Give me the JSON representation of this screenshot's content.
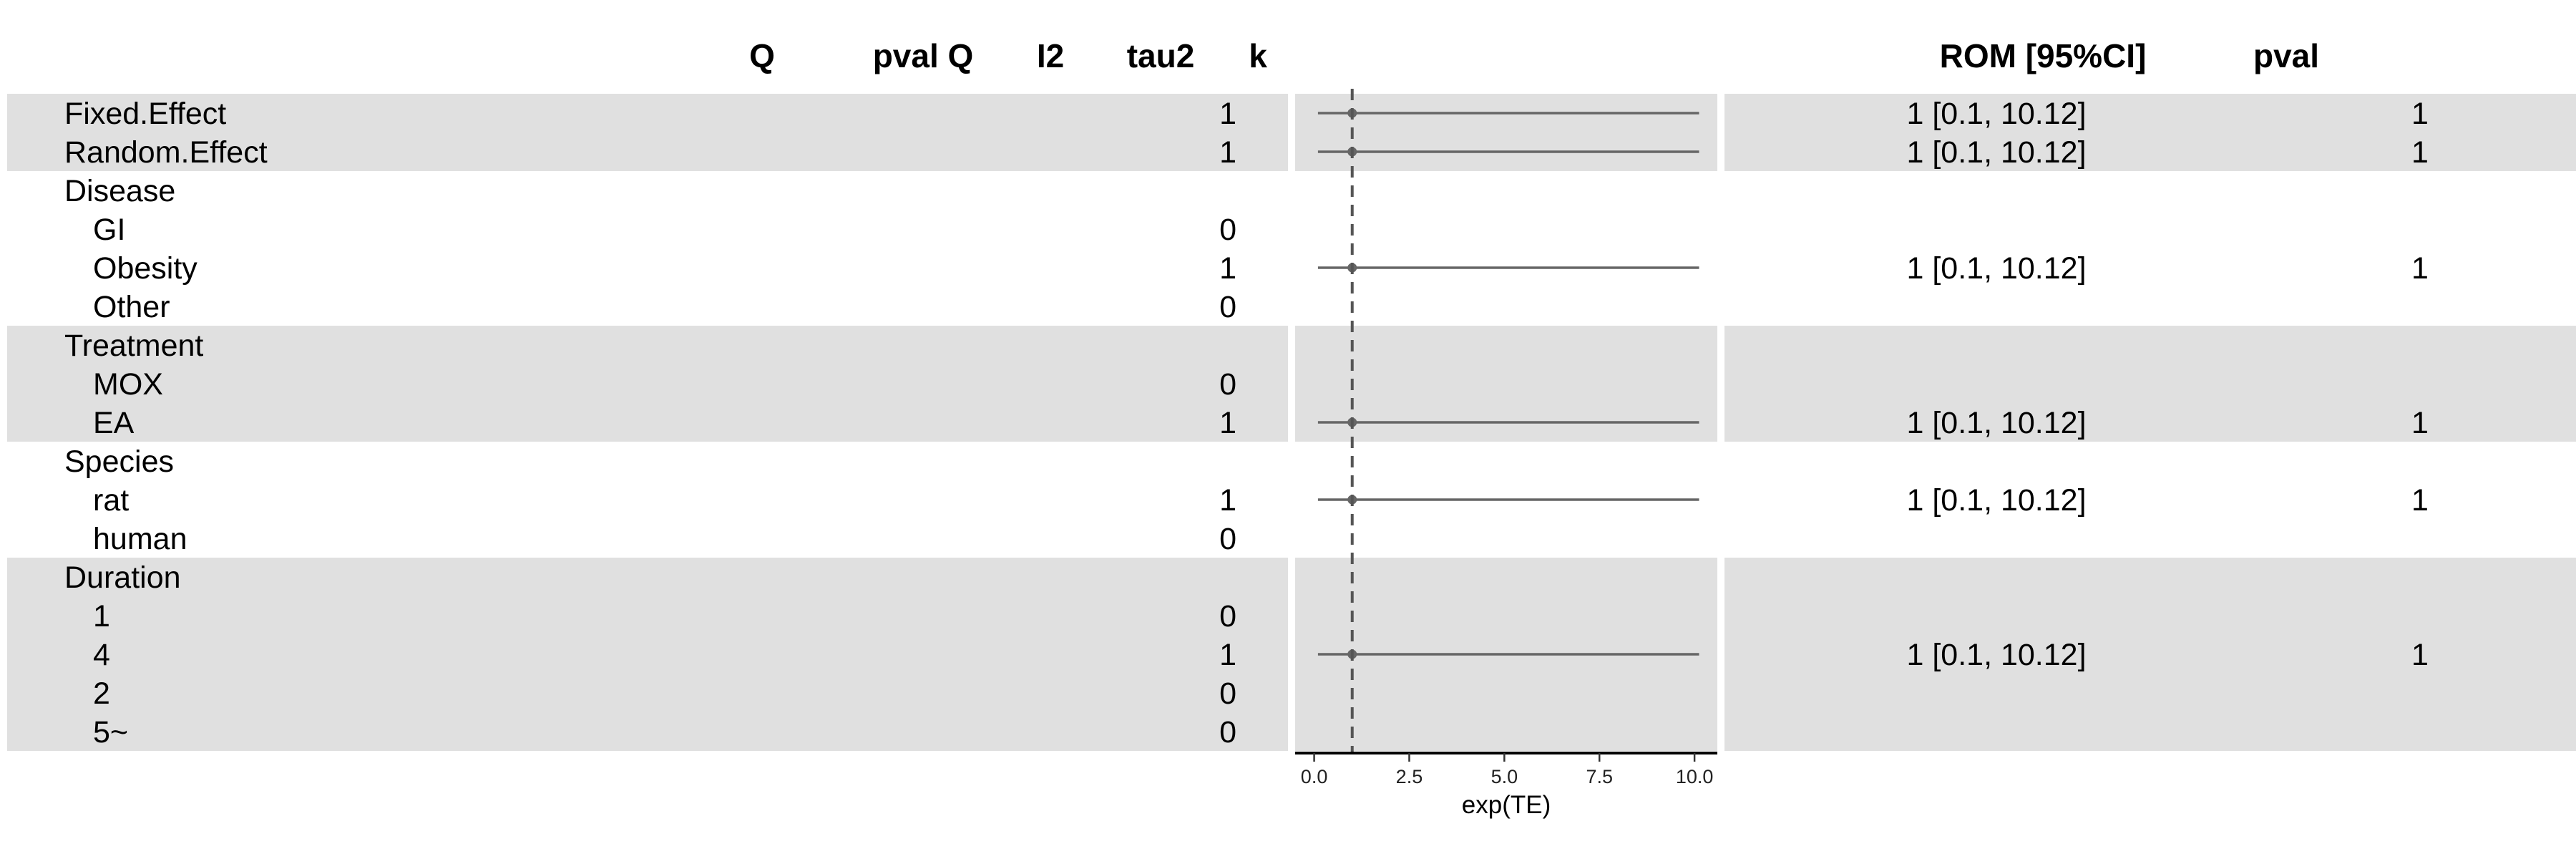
{
  "chart_data": {
    "type": "forest",
    "left_headers": [
      "Q",
      "pval Q",
      "I2",
      "tau2",
      "k"
    ],
    "right_headers": [
      "ROM [95%CI]",
      "pval"
    ],
    "rows": [
      {
        "label": "Fixed.Effect",
        "indent": 0,
        "group": 0,
        "k": "1",
        "est": 1,
        "lo": 0.1,
        "hi": 10.12,
        "ci": "1 [0.1, 10.12]",
        "pval": "1"
      },
      {
        "label": "Random.Effect",
        "indent": 0,
        "group": 0,
        "k": "1",
        "est": 1,
        "lo": 0.1,
        "hi": 10.12,
        "ci": "1 [0.1, 10.12]",
        "pval": "1"
      },
      {
        "label": "Disease",
        "indent": 0,
        "group": 1,
        "k": "",
        "est": null,
        "ci": "",
        "pval": ""
      },
      {
        "label": "GI",
        "indent": 1,
        "group": 1,
        "k": "0",
        "est": null,
        "ci": "",
        "pval": ""
      },
      {
        "label": "Obesity",
        "indent": 1,
        "group": 1,
        "k": "1",
        "est": 1,
        "lo": 0.1,
        "hi": 10.12,
        "ci": "1 [0.1, 10.12]",
        "pval": "1"
      },
      {
        "label": "Other",
        "indent": 1,
        "group": 1,
        "k": "0",
        "est": null,
        "ci": "",
        "pval": ""
      },
      {
        "label": "Treatment",
        "indent": 0,
        "group": 2,
        "k": "",
        "est": null,
        "ci": "",
        "pval": ""
      },
      {
        "label": "MOX",
        "indent": 1,
        "group": 2,
        "k": "0",
        "est": null,
        "ci": "",
        "pval": ""
      },
      {
        "label": "EA",
        "indent": 1,
        "group": 2,
        "k": "1",
        "est": 1,
        "lo": 0.1,
        "hi": 10.12,
        "ci": "1 [0.1, 10.12]",
        "pval": "1"
      },
      {
        "label": "Species",
        "indent": 0,
        "group": 3,
        "k": "",
        "est": null,
        "ci": "",
        "pval": ""
      },
      {
        "label": "rat",
        "indent": 1,
        "group": 3,
        "k": "1",
        "est": 1,
        "lo": 0.1,
        "hi": 10.12,
        "ci": "1 [0.1, 10.12]",
        "pval": "1"
      },
      {
        "label": "human",
        "indent": 1,
        "group": 3,
        "k": "0",
        "est": null,
        "ci": "",
        "pval": ""
      },
      {
        "label": "Duration",
        "indent": 0,
        "group": 4,
        "k": "",
        "est": null,
        "ci": "",
        "pval": ""
      },
      {
        "label": "1",
        "indent": 1,
        "group": 4,
        "k": "0",
        "est": null,
        "ci": "",
        "pval": ""
      },
      {
        "label": "4",
        "indent": 1,
        "group": 4,
        "k": "1",
        "est": 1,
        "lo": 0.1,
        "hi": 10.12,
        "ci": "1 [0.1, 10.12]",
        "pval": "1"
      },
      {
        "label": "2",
        "indent": 1,
        "group": 4,
        "k": "0",
        "est": null,
        "ci": "",
        "pval": ""
      },
      {
        "label": "5~",
        "indent": 1,
        "group": 4,
        "k": "0",
        "est": null,
        "ci": "",
        "pval": ""
      }
    ],
    "xlabel": "exp(TE)",
    "xlim": [
      -0.5,
      10.6
    ],
    "xticks": [
      0.0,
      2.5,
      5.0,
      7.5,
      10.0
    ],
    "xtick_labels": [
      "0.0",
      "2.5",
      "5.0",
      "7.5",
      "10.0"
    ],
    "reference_line": 1,
    "shaded_groups": [
      0,
      2,
      4
    ],
    "colors": {
      "band": "#e0e0e0",
      "marks": "#666666"
    }
  }
}
